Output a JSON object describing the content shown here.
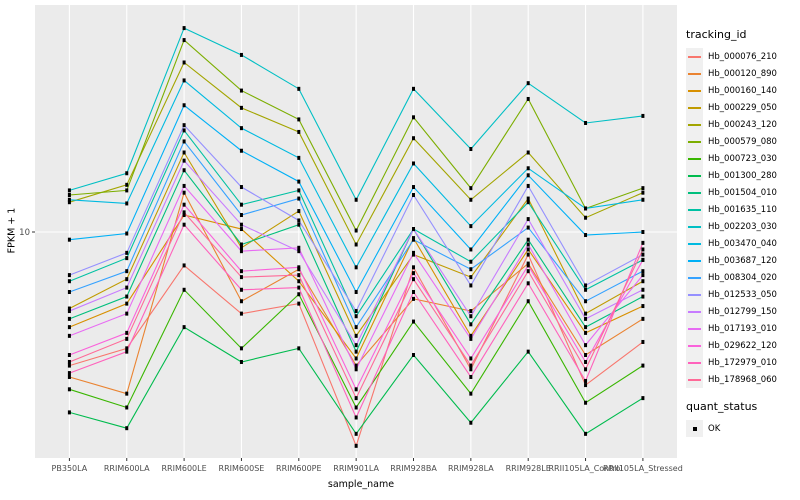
{
  "chart_data": {
    "type": "line",
    "title": "",
    "xlabel": "sample_name",
    "ylabel": "FPKM + 1",
    "y_scale": "log10",
    "y_ticks": [
      {
        "label": "10",
        "value": 10
      }
    ],
    "ylim": [
      2.2,
      42
    ],
    "panel_bg": "#EBEBEB",
    "grid_color": "#FFFFFF",
    "axis_text_color": "#4D4D4D",
    "point_color": "#000000",
    "legend_position": "right",
    "categories": [
      "PB350LA",
      "RRIM600LA",
      "RRIM600LE",
      "RRIM600SE",
      "RRIM600PE",
      "RRIM901LA",
      "RRIM928BA",
      "RRIM928LA",
      "RRIM928LE",
      "RRII105LA_Control",
      "RRII105LA_Stressed"
    ],
    "series": [
      {
        "name": "Hb_000076_210",
        "color": "#F8766D",
        "values": [
          4.1,
          4.6,
          8.0,
          5.8,
          6.2,
          2.4,
          7.9,
          4.0,
          8.6,
          3.6,
          4.8
        ]
      },
      {
        "name": "Hb_000120_890",
        "color": "#EA8331",
        "values": [
          3.8,
          3.4,
          13.0,
          6.3,
          7.8,
          4.1,
          6.4,
          5.9,
          8.1,
          4.4,
          5.6
        ]
      },
      {
        "name": "Hb_000160_140",
        "color": "#D89000",
        "values": [
          5.3,
          6.2,
          11.2,
          10.2,
          7.2,
          4.3,
          9.6,
          5.0,
          8.9,
          5.1,
          6.1
        ]
      },
      {
        "name": "Hb_000229_050",
        "color": "#C09B00",
        "values": [
          6.0,
          7.3,
          17.0,
          9.0,
          11.5,
          5.0,
          8.6,
          7.4,
          12.5,
          5.8,
          7.2
        ]
      },
      {
        "name": "Hb_000243_120",
        "color": "#A3A500",
        "values": [
          12.2,
          13.7,
          31.0,
          22.9,
          19.5,
          9.2,
          18.7,
          12.4,
          17.0,
          11.0,
          13.0
        ]
      },
      {
        "name": "Hb_000579_080",
        "color": "#7CAE00",
        "values": [
          12.8,
          13.2,
          36.0,
          25.7,
          21.2,
          10.1,
          21.5,
          13.4,
          24.3,
          11.7,
          13.4
        ]
      },
      {
        "name": "Hb_000723_030",
        "color": "#39B600",
        "values": [
          3.5,
          3.1,
          6.8,
          4.6,
          6.6,
          3.1,
          5.5,
          3.4,
          6.3,
          3.2,
          4.1
        ]
      },
      {
        "name": "Hb_001300_280",
        "color": "#00BB4E",
        "values": [
          3.0,
          2.7,
          5.3,
          4.2,
          4.6,
          2.6,
          4.4,
          2.8,
          4.5,
          2.6,
          3.3
        ]
      },
      {
        "name": "Hb_001504_010",
        "color": "#00BF7D",
        "values": [
          5.6,
          6.5,
          15.1,
          9.2,
          10.5,
          4.5,
          10.2,
          5.4,
          9.5,
          5.3,
          6.5
        ]
      },
      {
        "name": "Hb_001635_110",
        "color": "#00C1A3",
        "values": [
          7.2,
          8.4,
          19.7,
          12.0,
          13.2,
          5.7,
          10.2,
          8.2,
          12.2,
          6.8,
          8.3
        ]
      },
      {
        "name": "Hb_002203_030",
        "color": "#00BFC4",
        "values": [
          13.2,
          14.8,
          39.0,
          32.6,
          26.0,
          12.4,
          26.0,
          17.4,
          27.0,
          20.7,
          21.7
        ]
      },
      {
        "name": "Hb_003470_040",
        "color": "#00BAE0",
        "values": [
          12.4,
          12.1,
          27.5,
          20.0,
          16.4,
          7.9,
          15.8,
          10.4,
          15.3,
          11.7,
          12.4
        ]
      },
      {
        "name": "Hb_003687_120",
        "color": "#00B0F6",
        "values": [
          9.5,
          9.9,
          23.3,
          17.2,
          14.0,
          6.7,
          13.5,
          8.9,
          14.6,
          9.8,
          10.0
        ]
      },
      {
        "name": "Hb_008304_020",
        "color": "#35A2FF",
        "values": [
          6.7,
          7.7,
          18.3,
          11.2,
          12.5,
          5.3,
          9.5,
          7.8,
          10.3,
          6.3,
          7.7
        ]
      },
      {
        "name": "Hb_012533_050",
        "color": "#9590FF",
        "values": [
          7.5,
          8.7,
          20.4,
          13.5,
          10.8,
          5.9,
          12.8,
          7.0,
          13.6,
          7.0,
          8.6
        ]
      },
      {
        "name": "Hb_012799_150",
        "color": "#C77CFF",
        "values": [
          5.9,
          6.9,
          16.1,
          10.5,
          8.8,
          4.7,
          10.2,
          5.7,
          10.9,
          5.6,
          6.8
        ]
      },
      {
        "name": "Hb_017193_010",
        "color": "#E76BF3",
        "values": [
          5.0,
          5.8,
          13.6,
          8.8,
          9.0,
          4.0,
          8.7,
          4.9,
          9.2,
          4.7,
          7.5
        ]
      },
      {
        "name": "Hb_029622_120",
        "color": "#FA62DB",
        "values": [
          4.4,
          5.1,
          12.0,
          7.7,
          7.9,
          3.5,
          7.6,
          4.3,
          8.0,
          4.2,
          8.3
        ]
      },
      {
        "name": "Hb_172979_010",
        "color": "#FF62BC",
        "values": [
          3.9,
          4.5,
          10.5,
          6.8,
          6.9,
          2.9,
          6.7,
          3.8,
          7.1,
          3.7,
          9.3
        ]
      },
      {
        "name": "Hb_178968_060",
        "color": "#FF6A98",
        "values": [
          4.2,
          4.9,
          11.4,
          7.4,
          7.5,
          3.3,
          7.3,
          4.1,
          7.7,
          4.0,
          8.9
        ]
      }
    ]
  },
  "legend": {
    "tracking_title": "tracking_id",
    "quant_title": "quant_status",
    "quant_items": [
      {
        "label": "OK",
        "marker": "black-square"
      }
    ]
  }
}
